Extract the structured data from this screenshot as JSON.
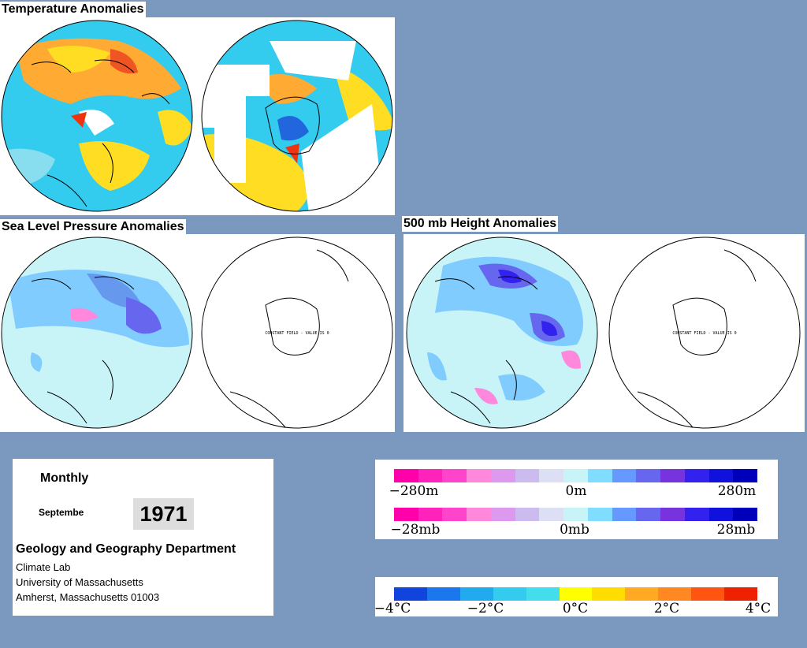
{
  "panels": {
    "temperature": {
      "title": "Temperature Anomalies"
    },
    "slp": {
      "title": "Sea Level Pressure Anomalies",
      "constant_field_text": "CONSTANT FIELD - VALUE IS 0"
    },
    "height500": {
      "title": "500 mb Height Anomalies",
      "constant_field_text": "CONSTANT FIELD - VALUE IS 0"
    }
  },
  "info": {
    "period": "Monthly",
    "month": "Septembe",
    "year": "1971",
    "department": "Geology and Geography Department",
    "lab": "Climate Lab",
    "university": "University of Massachusetts",
    "address": "Amherst, Massachusetts 01003"
  },
  "legends": {
    "height": {
      "min_label": "−280m",
      "mid_label": "0m",
      "max_label": "280m",
      "colors": [
        "#ff00aa",
        "#ff22bb",
        "#ff44cc",
        "#ff88dd",
        "#dd99ee",
        "#ccbbee",
        "#dde0f4",
        "#c8f4f8",
        "#80ddff",
        "#6699ff",
        "#6666ee",
        "#7733dd",
        "#3322ee",
        "#1111dd",
        "#0000bb"
      ]
    },
    "pressure": {
      "min_label": "−28mb",
      "mid_label": "0mb",
      "max_label": "28mb",
      "colors": [
        "#ff00aa",
        "#ff22bb",
        "#ff44cc",
        "#ff88dd",
        "#dd99ee",
        "#ccbbee",
        "#dde0f4",
        "#c8f4f8",
        "#80ddff",
        "#6699ff",
        "#6666ee",
        "#7733dd",
        "#3322ee",
        "#1111dd",
        "#0000bb"
      ]
    },
    "temperature": {
      "labels": [
        "−4°C",
        "−2°C",
        "0°C",
        "2°C",
        "4°C"
      ],
      "colors": [
        "#1144dd",
        "#1a77ee",
        "#22aaee",
        "#33ccee",
        "#44ddee",
        "#ffff00",
        "#ffdd00",
        "#ffaa22",
        "#ff8822",
        "#ff5511",
        "#ee2200"
      ]
    }
  },
  "map_colors": {
    "cyan": "#33ccee",
    "yellow": "#ffdd22",
    "orange": "#ffaa33",
    "red": "#ee3311",
    "blue": "#2266dd",
    "light_cyan": "#c8f4f8",
    "mid_blue": "#80ccff",
    "purple_blue": "#6666ee",
    "pink": "#ff88dd"
  }
}
